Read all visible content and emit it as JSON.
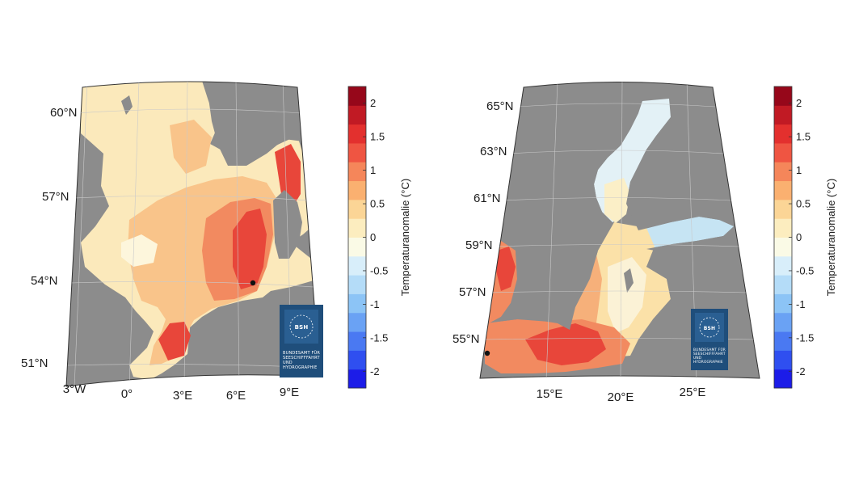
{
  "maps": [
    {
      "region": "North Sea",
      "lat_labels": [
        "60°N",
        "57°N",
        "54°N",
        "51°N"
      ],
      "lon_labels": [
        "3°W",
        "0°",
        "3°E",
        "6°E",
        "9°E"
      ],
      "logo": {
        "abbr": "BSH",
        "lines": [
          "BUNDESAMT FÜR",
          "SEESCHIFFFAHRT",
          "UND",
          "HYDROGRAPHIE"
        ]
      }
    },
    {
      "region": "Baltic Sea",
      "lat_labels": [
        "65°N",
        "63°N",
        "61°N",
        "59°N",
        "57°N",
        "55°N"
      ],
      "lon_labels": [
        "15°E",
        "20°E",
        "25°E"
      ],
      "logo": {
        "abbr": "BSH",
        "lines": [
          "BUNDESAMT FÜR",
          "SEESCHIFFFAHRT",
          "UND",
          "HYDROGRAPHIE"
        ]
      }
    }
  ],
  "colorbar": {
    "title": "Temperaturanomalie (°C)",
    "ticks": [
      "2",
      "1.5",
      "1",
      "0.5",
      "0",
      "-0.5",
      "-1",
      "-1.5",
      "-2"
    ],
    "range": [
      -2.25,
      2.25
    ],
    "colors": [
      "#1c1ce8",
      "#2f4ff0",
      "#4a79f2",
      "#6aa2f4",
      "#8cc4f6",
      "#b4dcf8",
      "#d8eefa",
      "#fafae6",
      "#fcedbf",
      "#fbd596",
      "#fab070",
      "#f5865a",
      "#ef5542",
      "#e3302e",
      "#c11a24",
      "#96071a"
    ]
  },
  "colors": {
    "land": "#8c8c8c",
    "water_bg": "#f8efc6",
    "logo_bg": "#1f4e7b"
  }
}
